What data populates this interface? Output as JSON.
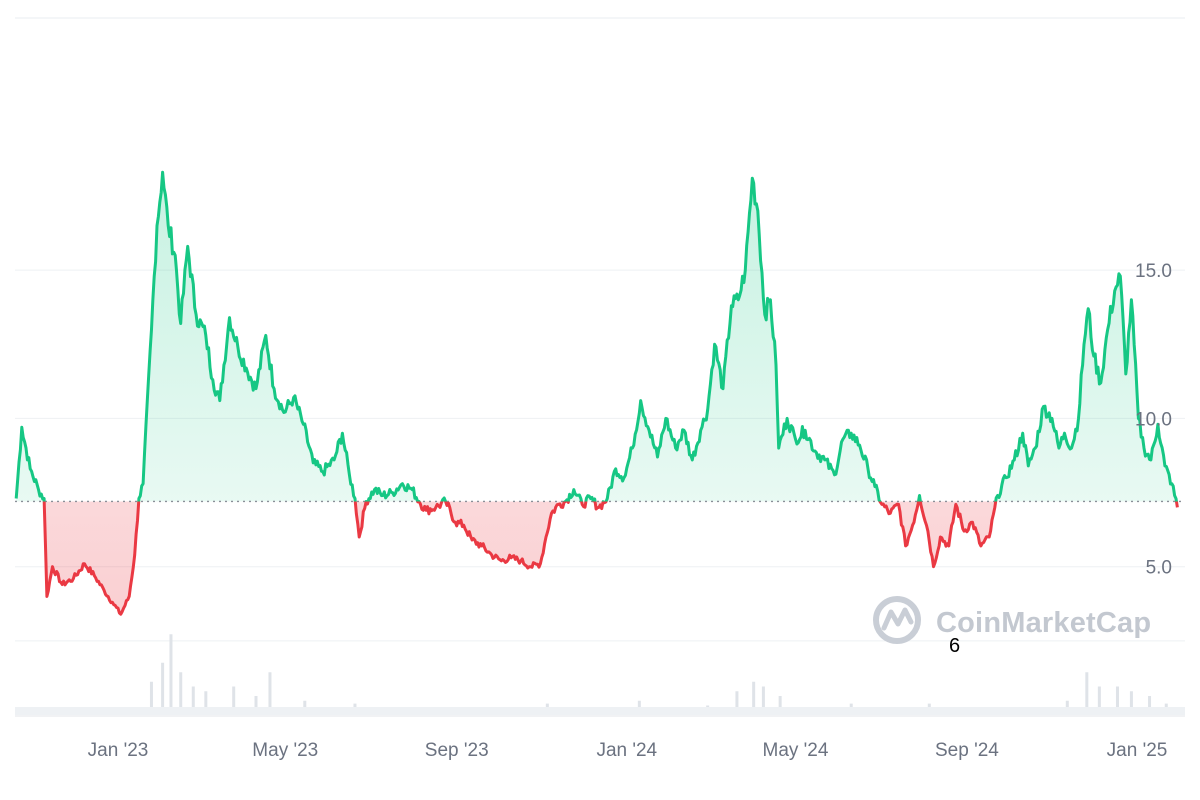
{
  "chart_data": {
    "type": "area",
    "x_type": "date",
    "baseline": 7.2,
    "ylim": [
      0,
      23.5
    ],
    "y_ticks": [
      {
        "value": 5,
        "label": "5.0"
      },
      {
        "value": 10,
        "label": "10.0"
      },
      {
        "value": 15,
        "label": "15.0"
      }
    ],
    "x_ticks": [
      {
        "value": "2023-01-01",
        "label": "Jan '23"
      },
      {
        "value": "2023-05-01",
        "label": "May '23"
      },
      {
        "value": "2023-09-01",
        "label": "Sep '23"
      },
      {
        "value": "2024-01-01",
        "label": "Jan '24"
      },
      {
        "value": "2024-05-01",
        "label": "May '24"
      },
      {
        "value": "2024-09-01",
        "label": "Sep '24"
      },
      {
        "value": "2025-01-01",
        "label": "Jan '25"
      }
    ],
    "grid": true,
    "colors": {
      "up": "#16c784",
      "down": "#ea3943",
      "grid": "#eef0f3",
      "volume": "#dfe3e8",
      "baseline": "#8a8f98"
    },
    "series": [
      {
        "points": [
          [
            "2022-10-20",
            7.3
          ],
          [
            "2022-10-24",
            9.7
          ],
          [
            "2022-10-30",
            8.3
          ],
          [
            "2022-11-05",
            7.6
          ],
          [
            "2022-11-09",
            7.3
          ],
          [
            "2022-11-11",
            4.0
          ],
          [
            "2022-11-15",
            5.0
          ],
          [
            "2022-11-22",
            4.4
          ],
          [
            "2022-11-30",
            4.6
          ],
          [
            "2022-12-08",
            5.1
          ],
          [
            "2022-12-15",
            4.7
          ],
          [
            "2022-12-22",
            4.2
          ],
          [
            "2022-12-28",
            3.8
          ],
          [
            "2023-01-03",
            3.4
          ],
          [
            "2023-01-09",
            4.0
          ],
          [
            "2023-01-13",
            5.4
          ],
          [
            "2023-01-16",
            7.3
          ],
          [
            "2023-01-19",
            7.8
          ],
          [
            "2023-01-25",
            13.0
          ],
          [
            "2023-01-29",
            16.5
          ],
          [
            "2023-02-02",
            18.3
          ],
          [
            "2023-02-06",
            16.5
          ],
          [
            "2023-02-11",
            15.5
          ],
          [
            "2023-02-15",
            13.2
          ],
          [
            "2023-02-20",
            15.8
          ],
          [
            "2023-02-26",
            13.5
          ],
          [
            "2023-03-05",
            12.8
          ],
          [
            "2023-03-10",
            11.3
          ],
          [
            "2023-03-15",
            10.6
          ],
          [
            "2023-03-22",
            13.4
          ],
          [
            "2023-03-28",
            12.4
          ],
          [
            "2023-04-03",
            11.7
          ],
          [
            "2023-04-10",
            11.0
          ],
          [
            "2023-04-17",
            12.8
          ],
          [
            "2023-04-23",
            11.0
          ],
          [
            "2023-04-30",
            10.2
          ],
          [
            "2023-05-07",
            10.7
          ],
          [
            "2023-05-14",
            9.8
          ],
          [
            "2023-05-21",
            8.5
          ],
          [
            "2023-05-28",
            8.2
          ],
          [
            "2023-06-05",
            8.6
          ],
          [
            "2023-06-11",
            9.5
          ],
          [
            "2023-06-16",
            8.1
          ],
          [
            "2023-06-20",
            7.3
          ],
          [
            "2023-06-23",
            6.0
          ],
          [
            "2023-06-28",
            7.2
          ],
          [
            "2023-07-04",
            7.6
          ],
          [
            "2023-07-10",
            7.4
          ],
          [
            "2023-07-17",
            7.5
          ],
          [
            "2023-07-24",
            7.8
          ],
          [
            "2023-07-31",
            7.6
          ],
          [
            "2023-08-05",
            7.2
          ],
          [
            "2023-08-10",
            6.9
          ],
          [
            "2023-08-17",
            7.0
          ],
          [
            "2023-08-24",
            7.2
          ],
          [
            "2023-08-31",
            6.5
          ],
          [
            "2023-09-06",
            6.4
          ],
          [
            "2023-09-12",
            5.9
          ],
          [
            "2023-09-19",
            5.7
          ],
          [
            "2023-09-26",
            5.4
          ],
          [
            "2023-10-03",
            5.2
          ],
          [
            "2023-10-10",
            5.3
          ],
          [
            "2023-10-17",
            5.2
          ],
          [
            "2023-10-24",
            5.0
          ],
          [
            "2023-10-31",
            5.1
          ],
          [
            "2023-11-04",
            6.0
          ],
          [
            "2023-11-08",
            6.8
          ],
          [
            "2023-11-13",
            7.1
          ],
          [
            "2023-11-18",
            7.2
          ],
          [
            "2023-11-24",
            7.6
          ],
          [
            "2023-11-30",
            7.1
          ],
          [
            "2023-12-06",
            7.3
          ],
          [
            "2023-12-12",
            7.0
          ],
          [
            "2023-12-18",
            7.3
          ],
          [
            "2023-12-24",
            8.3
          ],
          [
            "2023-12-30",
            8.0
          ],
          [
            "2024-01-05",
            9.0
          ],
          [
            "2024-01-11",
            10.6
          ],
          [
            "2024-01-17",
            9.6
          ],
          [
            "2024-01-23",
            8.7
          ],
          [
            "2024-01-29",
            10.0
          ],
          [
            "2024-02-05",
            9.0
          ],
          [
            "2024-02-11",
            9.6
          ],
          [
            "2024-02-17",
            8.6
          ],
          [
            "2024-02-23",
            9.6
          ],
          [
            "2024-02-28",
            10.3
          ],
          [
            "2024-03-04",
            12.5
          ],
          [
            "2024-03-10",
            11.0
          ],
          [
            "2024-03-16",
            13.8
          ],
          [
            "2024-03-21",
            14.0
          ],
          [
            "2024-03-26",
            15.0
          ],
          [
            "2024-03-31",
            18.1
          ],
          [
            "2024-04-04",
            17.0
          ],
          [
            "2024-04-09",
            13.5
          ],
          [
            "2024-04-13",
            14.0
          ],
          [
            "2024-04-17",
            11.8
          ],
          [
            "2024-04-19",
            9.0
          ],
          [
            "2024-04-25",
            10.0
          ],
          [
            "2024-05-01",
            9.3
          ],
          [
            "2024-05-08",
            9.6
          ],
          [
            "2024-05-15",
            8.9
          ],
          [
            "2024-05-22",
            8.6
          ],
          [
            "2024-05-29",
            8.1
          ],
          [
            "2024-06-04",
            9.3
          ],
          [
            "2024-06-10",
            9.5
          ],
          [
            "2024-06-16",
            9.1
          ],
          [
            "2024-06-22",
            8.3
          ],
          [
            "2024-06-27",
            7.7
          ],
          [
            "2024-07-02",
            7.1
          ],
          [
            "2024-07-08",
            6.8
          ],
          [
            "2024-07-14",
            7.1
          ],
          [
            "2024-07-19",
            5.7
          ],
          [
            "2024-07-24",
            6.4
          ],
          [
            "2024-07-29",
            7.4
          ],
          [
            "2024-08-04",
            6.2
          ],
          [
            "2024-08-08",
            5.0
          ],
          [
            "2024-08-13",
            6.0
          ],
          [
            "2024-08-19",
            5.7
          ],
          [
            "2024-08-24",
            7.1
          ],
          [
            "2024-08-30",
            6.2
          ],
          [
            "2024-09-05",
            6.5
          ],
          [
            "2024-09-11",
            5.7
          ],
          [
            "2024-09-17",
            6.0
          ],
          [
            "2024-09-23",
            7.4
          ],
          [
            "2024-09-29",
            8.0
          ],
          [
            "2024-10-05",
            8.6
          ],
          [
            "2024-10-11",
            9.5
          ],
          [
            "2024-10-15",
            8.4
          ],
          [
            "2024-10-20",
            9.0
          ],
          [
            "2024-10-26",
            10.4
          ],
          [
            "2024-11-01",
            10.0
          ],
          [
            "2024-11-06",
            9.0
          ],
          [
            "2024-11-10",
            9.5
          ],
          [
            "2024-11-15",
            9.0
          ],
          [
            "2024-11-20",
            10.0
          ],
          [
            "2024-11-24",
            12.5
          ],
          [
            "2024-11-27",
            13.7
          ],
          [
            "2024-12-01",
            12.1
          ],
          [
            "2024-12-06",
            11.2
          ],
          [
            "2024-12-11",
            13.0
          ],
          [
            "2024-12-16",
            14.3
          ],
          [
            "2024-12-20",
            14.8
          ],
          [
            "2024-12-24",
            11.5
          ],
          [
            "2024-12-28",
            14.0
          ],
          [
            "2025-01-02",
            10.0
          ],
          [
            "2025-01-06",
            9.0
          ],
          [
            "2025-01-11",
            8.6
          ],
          [
            "2025-01-16",
            9.8
          ],
          [
            "2025-01-21",
            8.4
          ],
          [
            "2025-01-26",
            7.8
          ],
          [
            "2025-01-30",
            7.0
          ]
        ]
      }
    ],
    "volume": [
      [
        "2023-01-10",
        0.05
      ],
      [
        "2023-01-25",
        0.35
      ],
      [
        "2023-02-02",
        0.55
      ],
      [
        "2023-02-08",
        0.85
      ],
      [
        "2023-02-15",
        0.45
      ],
      [
        "2023-02-24",
        0.3
      ],
      [
        "2023-03-05",
        0.25
      ],
      [
        "2023-03-25",
        0.3
      ],
      [
        "2023-04-10",
        0.2
      ],
      [
        "2023-04-20",
        0.45
      ],
      [
        "2023-05-15",
        0.15
      ],
      [
        "2023-06-20",
        0.12
      ],
      [
        "2023-11-05",
        0.12
      ],
      [
        "2024-01-10",
        0.15
      ],
      [
        "2024-02-28",
        0.1
      ],
      [
        "2024-03-20",
        0.25
      ],
      [
        "2024-04-01",
        0.35
      ],
      [
        "2024-04-08",
        0.3
      ],
      [
        "2024-04-20",
        0.2
      ],
      [
        "2024-06-10",
        0.12
      ],
      [
        "2024-08-05",
        0.12
      ],
      [
        "2024-11-12",
        0.15
      ],
      [
        "2024-11-26",
        0.45
      ],
      [
        "2024-12-05",
        0.3
      ],
      [
        "2024-12-18",
        0.3
      ],
      [
        "2024-12-28",
        0.25
      ],
      [
        "2025-01-10",
        0.2
      ],
      [
        "2025-01-22",
        0.12
      ]
    ]
  },
  "watermark": {
    "text": "CoinMarketCap"
  },
  "annotation": {
    "text": "6"
  }
}
